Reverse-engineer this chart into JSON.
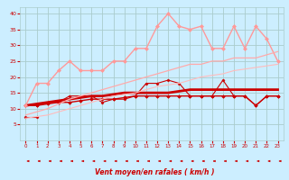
{
  "xlabel": "Vent moyen/en rafales ( km/h )",
  "background_color": "#cceeff",
  "grid_color": "#aacccc",
  "text_color": "#cc0000",
  "xlim": [
    -0.5,
    23.5
  ],
  "ylim": [
    0,
    42
  ],
  "yticks": [
    5,
    10,
    15,
    20,
    25,
    30,
    35,
    40
  ],
  "xticks": [
    0,
    1,
    2,
    3,
    4,
    5,
    6,
    7,
    8,
    9,
    10,
    11,
    12,
    13,
    14,
    15,
    16,
    17,
    18,
    19,
    20,
    21,
    22,
    23
  ],
  "series": [
    {
      "x": [
        0,
        1
      ],
      "y": [
        7.5,
        7.5
      ],
      "color": "#cc0000",
      "linewidth": 0.8,
      "marker": "D",
      "markersize": 1.5,
      "alpha": 1.0
    },
    {
      "x": [
        0,
        1,
        2,
        3,
        4,
        5,
        6,
        7,
        8,
        9,
        10,
        11,
        12,
        13,
        14,
        15,
        16,
        17,
        18,
        19,
        20,
        21,
        22,
        23
      ],
      "y": [
        11,
        11,
        11.5,
        12,
        12,
        12.5,
        13,
        13,
        13,
        13.5,
        14,
        14,
        14,
        14,
        14,
        14,
        14,
        14,
        14,
        14,
        14,
        11,
        14,
        14
      ],
      "color": "#cc0000",
      "linewidth": 1.0,
      "marker": "D",
      "markersize": 1.8,
      "alpha": 1.0
    },
    {
      "x": [
        0,
        1,
        2,
        3,
        4,
        5,
        6,
        7,
        8,
        9,
        10,
        11,
        12,
        13,
        14,
        15,
        16,
        17,
        18,
        19,
        20,
        21,
        22,
        23
      ],
      "y": [
        11,
        11,
        12,
        12,
        14,
        14,
        14,
        12,
        13,
        13,
        14,
        18,
        18,
        19,
        18,
        14,
        14,
        14,
        19,
        14,
        14,
        11,
        14,
        14
      ],
      "color": "#cc0000",
      "linewidth": 0.8,
      "marker": "D",
      "markersize": 1.5,
      "alpha": 1.0
    },
    {
      "x": [
        0,
        1,
        2,
        3,
        4,
        5,
        6,
        7,
        8,
        9,
        10,
        11,
        12,
        13,
        14,
        15,
        16,
        17,
        18,
        19,
        20,
        21,
        22,
        23
      ],
      "y": [
        11,
        11.5,
        12,
        12.5,
        13,
        13.5,
        14,
        14,
        14.5,
        15,
        15,
        15,
        15,
        15,
        15.5,
        16,
        16,
        16,
        16,
        16,
        16,
        16,
        16,
        16
      ],
      "color": "#cc0000",
      "linewidth": 2.0,
      "marker": null,
      "markersize": 0,
      "alpha": 1.0
    },
    {
      "x": [
        0,
        1,
        2,
        3,
        4,
        5,
        6,
        7,
        8,
        9,
        10,
        11,
        12,
        13,
        14,
        15,
        16,
        17,
        18,
        19,
        20,
        21,
        22,
        23
      ],
      "y": [
        11,
        18,
        18,
        22,
        25,
        22,
        22,
        22,
        25,
        25,
        29,
        29,
        36,
        40,
        36,
        35,
        36,
        29,
        29,
        36,
        29,
        36,
        32,
        25
      ],
      "color": "#ff9999",
      "linewidth": 1.0,
      "marker": "D",
      "markersize": 2.0,
      "alpha": 1.0
    },
    {
      "x": [
        0,
        1,
        2,
        3,
        4,
        5,
        6,
        7,
        8,
        9,
        10,
        11,
        12,
        13,
        14,
        15,
        16,
        17,
        18,
        19,
        20,
        21,
        22,
        23
      ],
      "y": [
        8,
        9,
        10,
        11.5,
        13,
        14,
        15,
        16,
        17,
        18,
        19,
        20,
        21,
        22,
        23,
        24,
        24,
        25,
        25,
        26,
        26,
        26,
        27,
        28
      ],
      "color": "#ffaaaa",
      "linewidth": 0.9,
      "marker": null,
      "markersize": 0,
      "alpha": 1.0
    },
    {
      "x": [
        0,
        1,
        2,
        3,
        4,
        5,
        6,
        7,
        8,
        9,
        10,
        11,
        12,
        13,
        14,
        15,
        16,
        17,
        18,
        19,
        20,
        21,
        22,
        23
      ],
      "y": [
        7,
        7.5,
        8,
        9,
        10,
        11,
        12,
        13,
        14,
        14.5,
        15,
        16,
        17,
        17.5,
        18,
        19,
        20,
        20.5,
        21,
        22,
        22.5,
        23,
        23.5,
        24
      ],
      "color": "#ffbbbb",
      "linewidth": 0.8,
      "marker": null,
      "markersize": 0,
      "alpha": 1.0
    }
  ]
}
